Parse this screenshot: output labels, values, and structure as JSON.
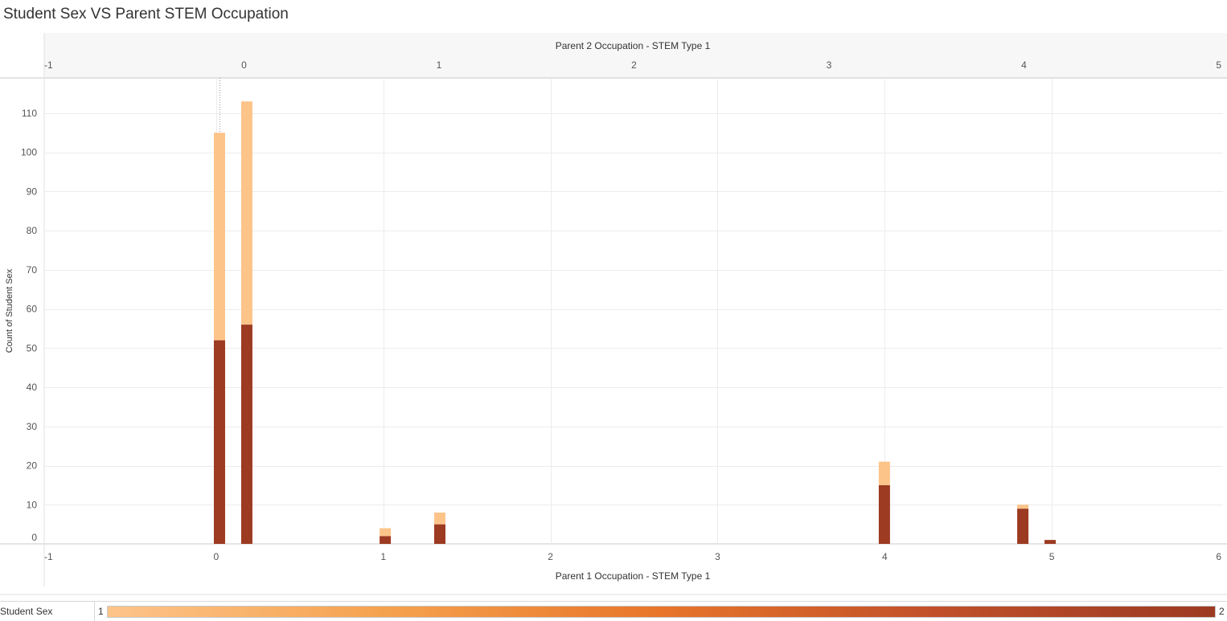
{
  "title": "Student Sex VS Parent STEM Occupation",
  "legend": {
    "label": "Student Sex",
    "min_label": "1",
    "max_label": "2",
    "gradient_colors": [
      "#fdc48a",
      "#f5a24e",
      "#e8752a",
      "#c0502a",
      "#9c3a22"
    ]
  },
  "chart_data": {
    "type": "bar",
    "stacked": true,
    "title": "Student Sex VS Parent STEM Occupation",
    "x_top": {
      "label": "Parent 2 Occupation - STEM Type 1",
      "ticks": [
        -1,
        0,
        1,
        2,
        3,
        4,
        5
      ],
      "range": [
        -1,
        5
      ]
    },
    "x_bottom": {
      "label": "Parent 1 Occupation - STEM Type 1",
      "ticks": [
        -1,
        0,
        1,
        2,
        3,
        4,
        5,
        6
      ],
      "range": [
        -1,
        6
      ]
    },
    "y": {
      "label": "Count of Student Sex",
      "ticks": [
        0,
        10,
        20,
        30,
        40,
        50,
        60,
        70,
        80,
        90,
        100,
        110
      ],
      "range": [
        0,
        119
      ]
    },
    "grid": true,
    "series": [
      {
        "name": "2",
        "color": "#9c3a22"
      },
      {
        "name": "1",
        "color": "#fdc48a"
      }
    ],
    "bars": [
      {
        "parent1": 0,
        "parent2": -0.13,
        "dark": 52,
        "light": 53
      },
      {
        "parent1": 0,
        "parent2": 0.01,
        "dark": 56,
        "light": 57
      },
      {
        "parent1": 1,
        "parent2": 0.72,
        "dark": 2,
        "light": 2
      },
      {
        "parent1": 1,
        "parent2": 1.0,
        "dark": 5,
        "light": 3
      },
      {
        "parent1": 4,
        "parent2": 3.28,
        "dark": 15,
        "light": 6
      },
      {
        "parent1": 5,
        "parent2": 3.99,
        "dark": 9,
        "light": 1
      },
      {
        "parent1": 5,
        "parent2": 4.13,
        "dark": 1,
        "light": 0
      }
    ]
  }
}
